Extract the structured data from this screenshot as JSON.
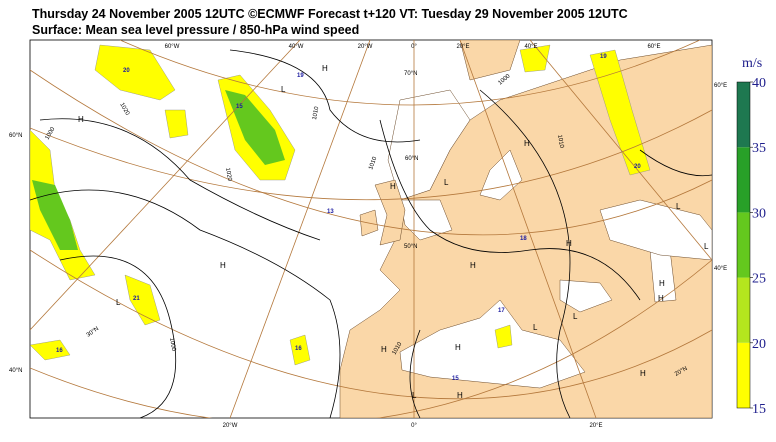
{
  "header": {
    "line1": "Thursday 24 November 2005 12UTC ©ECMWF Forecast t+120 VT: Tuesday 29 November 2005 12UTC",
    "line2": "Surface: Mean sea level pressure / 850-hPa wind speed"
  },
  "colorbar": {
    "unit": "m/s",
    "ticks": [
      15,
      20,
      25,
      30,
      35,
      40
    ],
    "colors": [
      "#ffff00",
      "#b4e61e",
      "#64c81e",
      "#28a028",
      "#1e7850"
    ]
  },
  "longitude_labels": [
    "60°W",
    "40°W",
    "20°W",
    "0°",
    "20°E",
    "40°E",
    "60°E",
    "20°W",
    "0°",
    "20°E"
  ],
  "latitude_labels": [
    "60°N",
    "40°N",
    "60°E",
    "40°E",
    "70°N",
    "60°N",
    "50°N",
    "30°N",
    "20°N"
  ],
  "pressure_centres": [
    "H",
    "H",
    "L",
    "H",
    "H",
    "L",
    "H",
    "H",
    "H",
    "L",
    "L",
    "H",
    "H",
    "L",
    "H",
    "L",
    "L",
    "H",
    "L",
    "H",
    "H"
  ],
  "isobar_labels": [
    "1000",
    "1020",
    "1010",
    "1000",
    "1010",
    "1020",
    "1010",
    "1010",
    "1000"
  ],
  "wind_labels": [
    "19",
    "20",
    "19",
    "20",
    "15",
    "13",
    "18",
    "21",
    "17",
    "16",
    "16",
    "15"
  ]
}
